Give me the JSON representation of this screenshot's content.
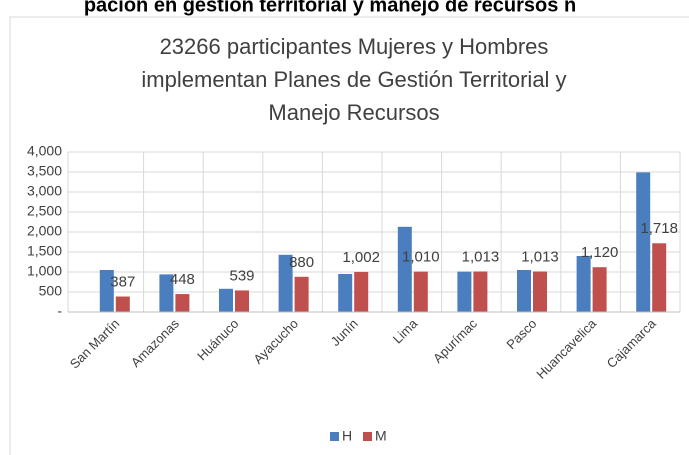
{
  "header": {
    "text": "pación en gestión territorial y manejo de recursos n"
  },
  "chart_data": {
    "type": "bar",
    "title": [
      "23266 participantes Mujeres y Hombres",
      "implementan Planes de Gestión Territorial y",
      "Manejo Recursos"
    ],
    "categories": [
      "San Martín",
      "Amazonas",
      "Huánuco",
      "Ayacucho",
      "Junín",
      "Lima",
      "Apurímac",
      "Pasco",
      "Huancavelica",
      "Cajamarca"
    ],
    "series": [
      {
        "name": "H",
        "color": "#4a7ebf",
        "values": [
          1050,
          940,
          580,
          1430,
          950,
          2130,
          1010,
          1050,
          1400,
          3490
        ]
      },
      {
        "name": "M",
        "color": "#c0504d",
        "values": [
          387,
          448,
          539,
          880,
          1002,
          1010,
          1013,
          1013,
          1120,
          1718
        ],
        "value_labels": [
          "387",
          "448",
          "539",
          "880",
          "1,002",
          "1,010",
          "1,013",
          "1,013",
          "1,120",
          "1,718"
        ]
      }
    ],
    "ylim": [
      0,
      4000
    ],
    "yticks": [
      {
        "value": 0,
        "label": "-"
      },
      500,
      {
        "value": 1000,
        "label": "1,000"
      },
      {
        "value": 1500,
        "label": "1,500"
      },
      {
        "value": 2000,
        "label": "2,000"
      },
      {
        "value": 2500,
        "label": "2,500"
      },
      {
        "value": 3000,
        "label": "3,000"
      },
      {
        "value": 3500,
        "label": "3,500"
      },
      {
        "value": 4000,
        "label": "4,000"
      }
    ],
    "grid": true,
    "legend": "bottom"
  }
}
